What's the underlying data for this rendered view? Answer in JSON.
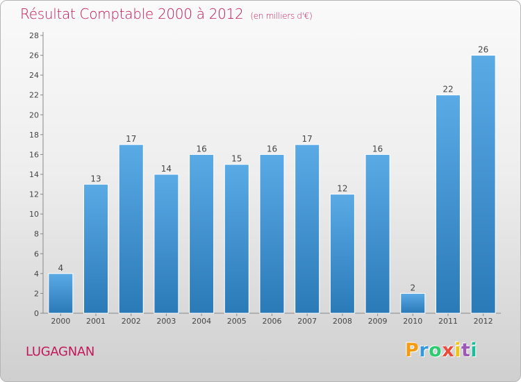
{
  "header": {
    "title": "Résultat Comptable 2000 à 2012",
    "subtitle": "(en milliers d'€)"
  },
  "footer": {
    "commune": "LUGAGNAN",
    "logo": "Proxiti"
  },
  "colors": {
    "accent": "#c2185b",
    "bar_top": "#5aaae6",
    "bar_bottom": "#2b7ab8"
  },
  "chart_data": {
    "type": "bar",
    "title": "Résultat Comptable 2000 à 2012",
    "subtitle": "(en milliers d'€)",
    "xlabel": "",
    "ylabel": "",
    "categories": [
      "2000",
      "2001",
      "2002",
      "2003",
      "2004",
      "2005",
      "2006",
      "2007",
      "2008",
      "2009",
      "2010",
      "2011",
      "2012"
    ],
    "values": [
      4,
      13,
      17,
      14,
      16,
      15,
      16,
      17,
      12,
      16,
      2,
      22,
      26
    ],
    "ylim": [
      0,
      28
    ],
    "yticks": [
      0,
      2,
      4,
      6,
      8,
      10,
      12,
      14,
      16,
      18,
      20,
      22,
      24,
      26,
      28
    ],
    "grid": false,
    "data_labels": true
  }
}
